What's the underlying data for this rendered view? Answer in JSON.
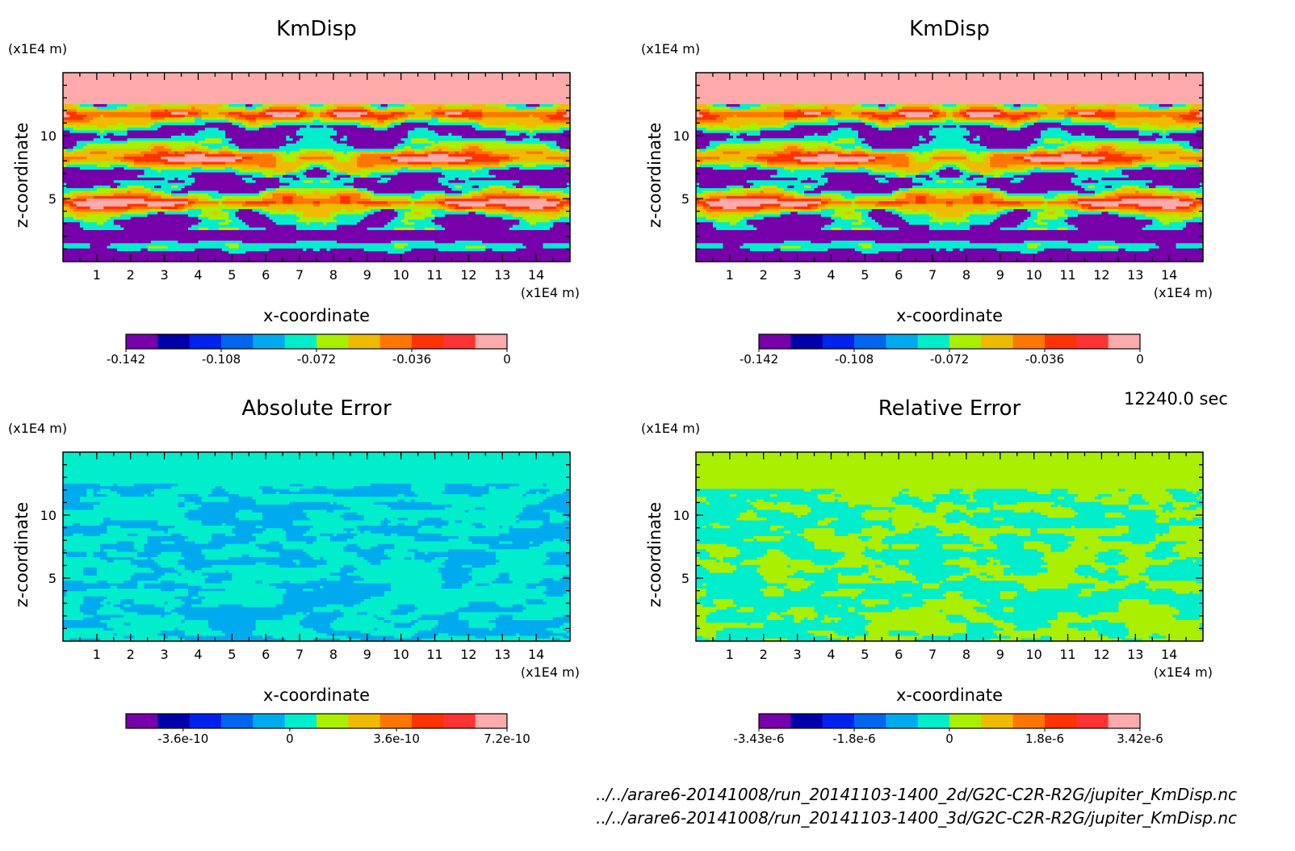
{
  "time_label": "12240.0 sec",
  "files": [
    "../../arare6-20141008/run_20141103-1400_2d/G2C-C2R-R2G/jupiter_KmDisp.nc",
    "../../arare6-20141008/run_20141103-1400_3d/G2C-C2R-R2G/jupiter_KmDisp.nc"
  ],
  "palettes": {
    "rainbow": [
      "#7700aa",
      "#0000aa",
      "#0022ee",
      "#0066ee",
      "#00aaee",
      "#00eecc",
      "#aaee00",
      "#eebb00",
      "#ff7700",
      "#ff3300",
      "#ff3333",
      "#ffaaaa"
    ]
  },
  "chart_data": [
    {
      "type": "heatmap",
      "title": "KmDisp",
      "xlabel": "x-coordinate",
      "ylabel": "z-coordinate",
      "x_unit": "(x1E4 m)",
      "z_unit": "(x1E4 m)",
      "xlim": [
        0,
        15
      ],
      "ylim": [
        0,
        15
      ],
      "x_ticks": [
        "1",
        "2",
        "3",
        "4",
        "5",
        "6",
        "7",
        "8",
        "9",
        "10",
        "11",
        "12",
        "13",
        "14"
      ],
      "y_ticks": [
        "5",
        "10"
      ],
      "colorbar": {
        "levels": 12,
        "tick_labels": [
          "-0.142",
          "-0.108",
          "-0.072",
          "-0.036",
          "0"
        ]
      },
      "field": "kmdisp"
    },
    {
      "type": "heatmap",
      "title": "KmDisp",
      "xlabel": "x-coordinate",
      "ylabel": "z-coordinate",
      "x_unit": "(x1E4 m)",
      "z_unit": "(x1E4 m)",
      "xlim": [
        0,
        15
      ],
      "ylim": [
        0,
        15
      ],
      "x_ticks": [
        "1",
        "2",
        "3",
        "4",
        "5",
        "6",
        "7",
        "8",
        "9",
        "10",
        "11",
        "12",
        "13",
        "14"
      ],
      "y_ticks": [
        "5",
        "10"
      ],
      "colorbar": {
        "levels": 12,
        "tick_labels": [
          "-0.142",
          "-0.108",
          "-0.072",
          "-0.036",
          "0"
        ]
      },
      "field": "kmdisp"
    },
    {
      "type": "heatmap",
      "title": "Absolute Error",
      "xlabel": "x-coordinate",
      "ylabel": "z-coordinate",
      "x_unit": "(x1E4 m)",
      "z_unit": "(x1E4 m)",
      "xlim": [
        0,
        15
      ],
      "ylim": [
        0,
        15
      ],
      "x_ticks": [
        "1",
        "2",
        "3",
        "4",
        "5",
        "6",
        "7",
        "8",
        "9",
        "10",
        "11",
        "12",
        "13",
        "14"
      ],
      "y_ticks": [
        "5",
        "10"
      ],
      "colorbar": {
        "levels": 12,
        "tick_labels": [
          "-3.6e-10",
          "0",
          "3.6e-10",
          "7.2e-10"
        ]
      },
      "field": "abserr"
    },
    {
      "type": "heatmap",
      "title": "Relative Error",
      "xlabel": "x-coordinate",
      "ylabel": "z-coordinate",
      "x_unit": "(x1E4 m)",
      "z_unit": "(x1E4 m)",
      "xlim": [
        0,
        15
      ],
      "ylim": [
        0,
        15
      ],
      "x_ticks": [
        "1",
        "2",
        "3",
        "4",
        "5",
        "6",
        "7",
        "8",
        "9",
        "10",
        "11",
        "12",
        "13",
        "14"
      ],
      "y_ticks": [
        "5",
        "10"
      ],
      "colorbar": {
        "levels": 12,
        "tick_labels": [
          "-3.43e-6",
          "-1.8e-6",
          "0",
          "1.8e-6",
          "3.42e-6"
        ]
      },
      "field": "relerr"
    }
  ]
}
